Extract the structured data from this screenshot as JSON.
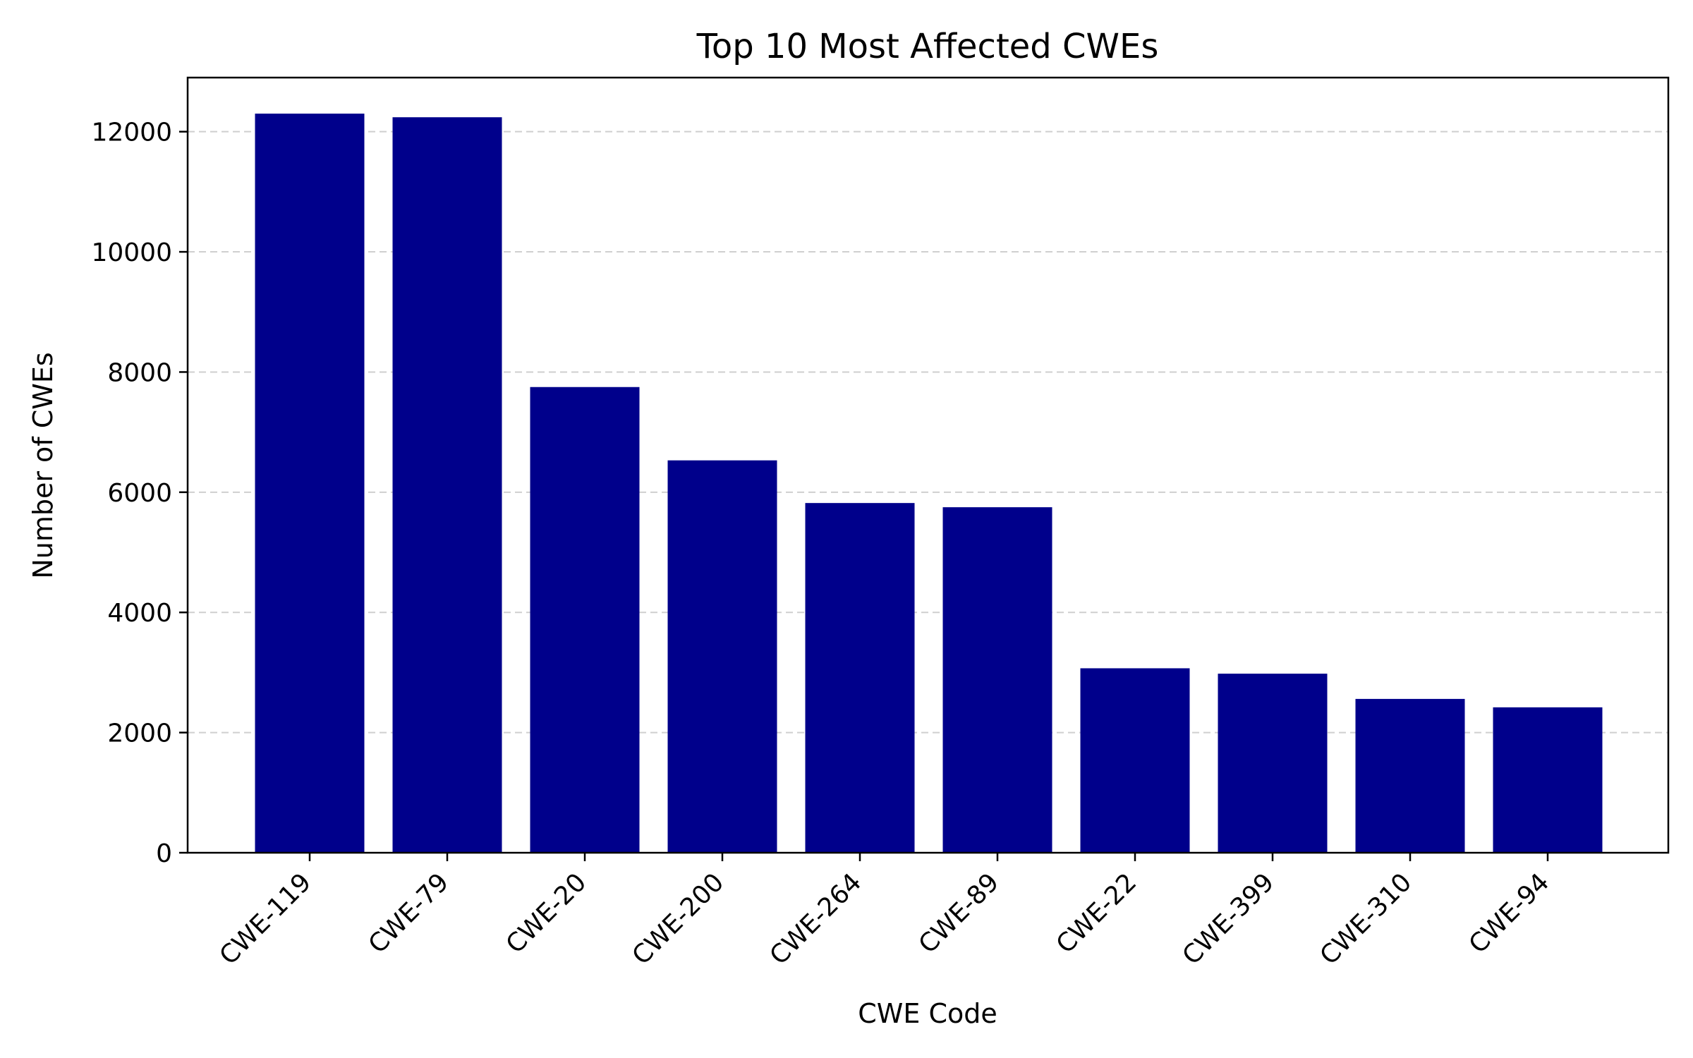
{
  "chart_data": {
    "type": "bar",
    "title": "Top 10 Most Affected CWEs",
    "xlabel": "CWE Code",
    "ylabel": "Number of CWEs",
    "categories": [
      "CWE-119",
      "CWE-79",
      "CWE-20",
      "CWE-200",
      "CWE-264",
      "CWE-89",
      "CWE-22",
      "CWE-399",
      "CWE-310",
      "CWE-94"
    ],
    "values": [
      12300,
      12240,
      7750,
      6530,
      5820,
      5750,
      3070,
      2980,
      2560,
      2420
    ],
    "ylim": [
      0,
      12900
    ],
    "yticks": [
      0,
      2000,
      4000,
      6000,
      8000,
      10000,
      12000
    ],
    "ytick_labels": [
      "0",
      "2000",
      "4000",
      "6000",
      "8000",
      "10000",
      "12000"
    ],
    "grid": {
      "axis": "y",
      "style": "dashed"
    },
    "legend": "none",
    "bar_color": "#00008b"
  }
}
